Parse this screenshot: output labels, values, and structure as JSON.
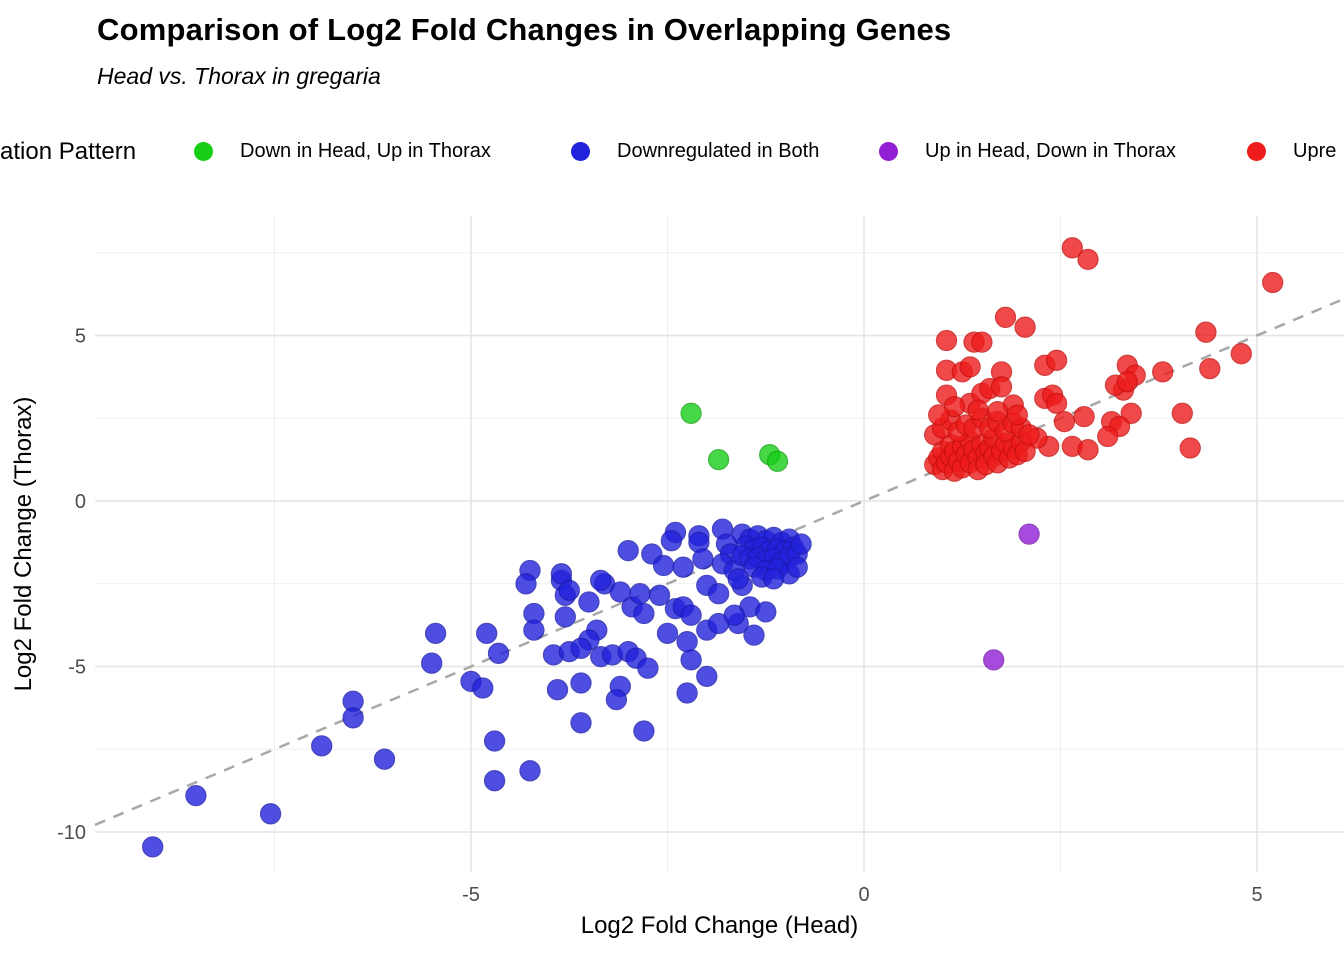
{
  "header": {
    "title": "Comparison of Log2 Fold Changes in Overlapping Genes",
    "subtitle": "Head vs. Thorax in gregaria"
  },
  "legend": {
    "title": "ation Pattern",
    "items": [
      {
        "label": "Down in Head, Up in Thorax",
        "color": "#17CE17"
      },
      {
        "label": "Downregulated in Both",
        "color": "#2222DC"
      },
      {
        "label": "Up in Head, Down in Thorax",
        "color": "#921FD6"
      },
      {
        "label": "Upre",
        "color": "#EE1C1C"
      }
    ]
  },
  "chart_data": {
    "type": "scatter",
    "title": "Comparison of Log2 Fold Changes in Overlapping Genes",
    "subtitle": "Head vs. Thorax in gregaria",
    "xlabel": "Log2 Fold Change (Head)",
    "ylabel": "Log2 Fold Change (Thorax)",
    "x_ticks": [
      -5,
      0,
      5
    ],
    "y_ticks": [
      5,
      0,
      -5,
      -10
    ],
    "x_minor_gridlines": [
      -7.5,
      -2.5,
      2.5
    ],
    "y_minor_gridlines": [
      7.5,
      2.5,
      -2.5,
      -7.5
    ],
    "xlim": [
      -9.8,
      6.1
    ],
    "ylim": [
      -11.2,
      8.6
    ],
    "grid": "on",
    "legend_position": "top",
    "reference_line": {
      "type": "identity y = x",
      "style": "dashed",
      "color": "#A8A8A8"
    },
    "point_alpha": 0.8,
    "series": [
      {
        "name": "Down in Head, Up in Thorax",
        "color": "#17CE17",
        "stroke": "#12A812",
        "points": [
          [
            -2.2,
            2.65
          ],
          [
            -1.85,
            1.25
          ],
          [
            -1.2,
            1.4
          ],
          [
            -1.1,
            1.2
          ]
        ]
      },
      {
        "name": "Downregulated in Both",
        "color": "#2222DC",
        "stroke": "#1A1AB0",
        "points": [
          [
            -9.05,
            -10.45
          ],
          [
            -8.5,
            -8.9
          ],
          [
            -7.55,
            -9.45
          ],
          [
            -6.9,
            -7.4
          ],
          [
            -6.1,
            -7.8
          ],
          [
            -6.5,
            -6.05
          ],
          [
            -6.5,
            -6.55
          ],
          [
            -4.7,
            -7.25
          ],
          [
            -4.7,
            -8.45
          ],
          [
            -4.25,
            -8.15
          ],
          [
            -2.8,
            -6.95
          ],
          [
            -3.6,
            -6.7
          ],
          [
            -5.45,
            -4.0
          ],
          [
            -5.5,
            -4.9
          ],
          [
            -4.8,
            -4.0
          ],
          [
            -4.65,
            -4.6
          ],
          [
            -5.0,
            -5.45
          ],
          [
            -4.85,
            -5.65
          ],
          [
            -4.25,
            -2.1
          ],
          [
            -4.3,
            -2.5
          ],
          [
            -3.85,
            -2.4
          ],
          [
            -3.8,
            -2.85
          ],
          [
            -4.2,
            -3.4
          ],
          [
            -3.8,
            -3.5
          ],
          [
            -4.2,
            -3.9
          ],
          [
            -3.5,
            -3.05
          ],
          [
            -3.3,
            -2.5
          ],
          [
            -3.35,
            -2.4
          ],
          [
            -3.85,
            -2.2
          ],
          [
            -3.75,
            -2.7
          ],
          [
            -3.4,
            -3.9
          ],
          [
            -3.5,
            -4.2
          ],
          [
            -3.95,
            -4.65
          ],
          [
            -3.75,
            -4.55
          ],
          [
            -3.6,
            -4.45
          ],
          [
            -3.35,
            -4.7
          ],
          [
            -3.2,
            -4.65
          ],
          [
            -3.0,
            -4.55
          ],
          [
            -2.9,
            -4.75
          ],
          [
            -2.75,
            -5.05
          ],
          [
            -3.6,
            -5.5
          ],
          [
            -3.9,
            -5.7
          ],
          [
            -3.1,
            -5.6
          ],
          [
            -3.15,
            -6.0
          ],
          [
            -2.5,
            -4.0
          ],
          [
            -2.25,
            -4.25
          ],
          [
            -2.2,
            -4.8
          ],
          [
            -2.25,
            -5.8
          ],
          [
            -2.0,
            -5.3
          ],
          [
            -2.0,
            -3.9
          ],
          [
            -1.85,
            -3.7
          ],
          [
            -1.4,
            -4.05
          ],
          [
            -1.6,
            -3.7
          ],
          [
            -2.4,
            -3.25
          ],
          [
            -2.95,
            -3.2
          ],
          [
            -2.8,
            -3.4
          ],
          [
            -3.1,
            -2.75
          ],
          [
            -2.85,
            -2.8
          ],
          [
            -2.6,
            -2.85
          ],
          [
            -2.3,
            -3.2
          ],
          [
            -2.2,
            -3.45
          ],
          [
            -2.0,
            -2.55
          ],
          [
            -1.85,
            -2.8
          ],
          [
            -1.55,
            -2.55
          ],
          [
            -1.45,
            -3.2
          ],
          [
            -1.25,
            -3.35
          ],
          [
            -1.65,
            -3.45
          ],
          [
            -3.0,
            -1.5
          ],
          [
            -2.7,
            -1.6
          ],
          [
            -2.4,
            -0.95
          ],
          [
            -2.45,
            -1.2
          ],
          [
            -2.1,
            -1.05
          ],
          [
            -2.1,
            -1.25
          ],
          [
            -2.55,
            -1.95
          ],
          [
            -2.3,
            -2.0
          ],
          [
            -2.05,
            -1.75
          ],
          [
            -1.8,
            -0.85
          ],
          [
            -1.75,
            -1.3
          ],
          [
            -1.7,
            -1.6
          ],
          [
            -1.8,
            -1.9
          ],
          [
            -1.65,
            -2.1
          ],
          [
            -1.6,
            -2.35
          ],
          [
            -1.55,
            -1.0
          ],
          [
            -1.45,
            -1.15
          ],
          [
            -1.35,
            -1.05
          ],
          [
            -1.25,
            -1.2
          ],
          [
            -1.15,
            -1.1
          ],
          [
            -1.05,
            -1.25
          ],
          [
            -0.95,
            -1.15
          ],
          [
            -1.5,
            -1.35
          ],
          [
            -1.4,
            -1.45
          ],
          [
            -1.3,
            -1.4
          ],
          [
            -1.2,
            -1.5
          ],
          [
            -1.1,
            -1.45
          ],
          [
            -1.0,
            -1.5
          ],
          [
            -0.9,
            -1.4
          ],
          [
            -1.55,
            -1.65
          ],
          [
            -1.45,
            -1.75
          ],
          [
            -1.35,
            -1.7
          ],
          [
            -1.25,
            -1.8
          ],
          [
            -1.15,
            -1.75
          ],
          [
            -1.05,
            -1.85
          ],
          [
            -0.95,
            -1.7
          ],
          [
            -0.85,
            -1.6
          ],
          [
            -1.4,
            -2.0
          ],
          [
            -1.25,
            -2.1
          ],
          [
            -1.1,
            -2.05
          ],
          [
            -0.95,
            -2.2
          ],
          [
            -1.3,
            -2.3
          ],
          [
            -1.15,
            -2.35
          ],
          [
            -0.85,
            -2.0
          ],
          [
            -0.8,
            -1.3
          ]
        ]
      },
      {
        "name": "Up in Head, Down in Thorax",
        "color": "#921FD6",
        "stroke": "#7619AE",
        "points": [
          [
            2.1,
            -1.0
          ],
          [
            1.65,
            -4.8
          ]
        ]
      },
      {
        "name": "Upre",
        "color": "#EE1C1C",
        "stroke": "#C90F0F",
        "points": [
          [
            2.65,
            7.65
          ],
          [
            2.85,
            7.3
          ],
          [
            5.2,
            6.6
          ],
          [
            1.8,
            5.55
          ],
          [
            2.05,
            5.25
          ],
          [
            1.05,
            4.85
          ],
          [
            1.4,
            4.8
          ],
          [
            1.5,
            4.8
          ],
          [
            4.35,
            5.1
          ],
          [
            4.8,
            4.45
          ],
          [
            1.05,
            3.95
          ],
          [
            1.25,
            3.9
          ],
          [
            1.35,
            4.05
          ],
          [
            1.75,
            3.9
          ],
          [
            2.3,
            4.1
          ],
          [
            2.45,
            4.25
          ],
          [
            3.35,
            4.1
          ],
          [
            3.45,
            3.8
          ],
          [
            3.8,
            3.9
          ],
          [
            4.4,
            4.0
          ],
          [
            3.3,
            3.35
          ],
          [
            3.4,
            2.65
          ],
          [
            4.05,
            2.65
          ],
          [
            3.15,
            2.4
          ],
          [
            3.25,
            2.25
          ],
          [
            3.1,
            1.95
          ],
          [
            4.15,
            1.6
          ],
          [
            1.05,
            3.2
          ],
          [
            1.35,
            2.95
          ],
          [
            1.5,
            3.25
          ],
          [
            1.6,
            3.4
          ],
          [
            1.75,
            3.45
          ],
          [
            1.9,
            2.9
          ],
          [
            2.3,
            3.1
          ],
          [
            2.4,
            3.2
          ],
          [
            2.45,
            2.95
          ],
          [
            3.2,
            3.5
          ],
          [
            3.35,
            3.6
          ],
          [
            2.55,
            2.4
          ],
          [
            2.8,
            2.55
          ],
          [
            2.65,
            1.65
          ],
          [
            2.35,
            1.65
          ],
          [
            2.85,
            1.55
          ],
          [
            2.2,
            1.9
          ],
          [
            0.9,
            1.1
          ],
          [
            0.95,
            1.3
          ],
          [
            1.0,
            0.95
          ],
          [
            1.0,
            1.5
          ],
          [
            1.05,
            1.15
          ],
          [
            1.1,
            1.35
          ],
          [
            1.1,
            1.7
          ],
          [
            1.15,
            0.9
          ],
          [
            1.15,
            1.5
          ],
          [
            1.2,
            1.2
          ],
          [
            1.25,
            1.65
          ],
          [
            1.25,
            1.0
          ],
          [
            1.3,
            1.4
          ],
          [
            1.35,
            1.8
          ],
          [
            1.35,
            1.15
          ],
          [
            1.4,
            1.55
          ],
          [
            1.45,
            1.3
          ],
          [
            1.45,
            0.95
          ],
          [
            1.5,
            1.7
          ],
          [
            1.55,
            1.45
          ],
          [
            1.55,
            1.1
          ],
          [
            1.6,
            1.6
          ],
          [
            1.65,
            1.35
          ],
          [
            1.65,
            1.9
          ],
          [
            1.7,
            1.15
          ],
          [
            1.75,
            1.5
          ],
          [
            1.8,
            1.75
          ],
          [
            1.85,
            1.3
          ],
          [
            1.9,
            1.6
          ],
          [
            1.95,
            1.4
          ],
          [
            2.0,
            1.8
          ],
          [
            2.05,
            1.5
          ],
          [
            0.9,
            2.0
          ],
          [
            1.0,
            2.2
          ],
          [
            1.1,
            2.45
          ],
          [
            1.2,
            2.1
          ],
          [
            1.3,
            2.3
          ],
          [
            1.4,
            2.2
          ],
          [
            1.5,
            2.5
          ],
          [
            1.6,
            2.2
          ],
          [
            1.7,
            2.4
          ],
          [
            1.8,
            2.1
          ],
          [
            1.9,
            2.35
          ],
          [
            2.0,
            2.2
          ],
          [
            2.1,
            2.0
          ],
          [
            1.15,
            2.85
          ],
          [
            0.95,
            2.6
          ],
          [
            1.45,
            2.75
          ],
          [
            1.7,
            2.7
          ],
          [
            1.95,
            2.6
          ]
        ]
      }
    ]
  }
}
